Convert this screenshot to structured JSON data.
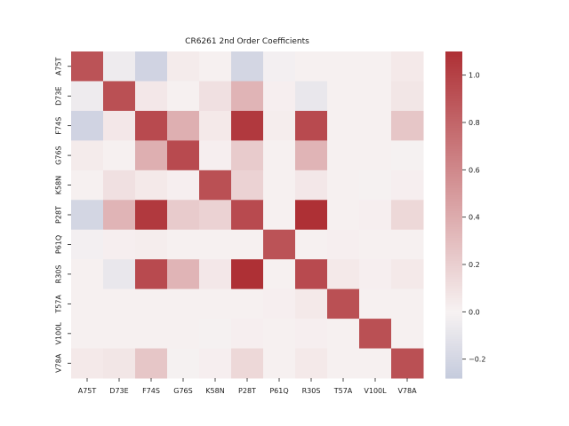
{
  "chart_data": {
    "type": "heatmap",
    "title": "CR6261 2nd Order Coefficients",
    "xlabel": "",
    "ylabel": "",
    "rows": [
      "A75T",
      "D73E",
      "F74S",
      "G76S",
      "K58N",
      "P28T",
      "P61Q",
      "R30S",
      "T57A",
      "V100L",
      "V78A"
    ],
    "columns": [
      "A75T",
      "D73E",
      "F74S",
      "G76S",
      "K58N",
      "P28T",
      "P61Q",
      "R30S",
      "T57A",
      "V100L",
      "V78A"
    ],
    "values": [
      [
        0.9,
        -0.05,
        -0.22,
        0.04,
        0.01,
        -0.2,
        -0.02,
        0.01,
        0.01,
        0.01,
        0.05
      ],
      [
        -0.05,
        0.92,
        0.06,
        0.01,
        0.1,
        0.35,
        0.02,
        -0.08,
        0.01,
        0.01,
        0.07
      ],
      [
        -0.22,
        0.06,
        0.95,
        0.38,
        0.05,
        1.05,
        0.03,
        0.95,
        0.01,
        0.01,
        0.25
      ],
      [
        0.04,
        0.01,
        0.38,
        0.95,
        0.02,
        0.22,
        0.01,
        0.35,
        0.01,
        0.01,
        -0.01
      ],
      [
        0.01,
        0.1,
        0.05,
        0.02,
        0.92,
        0.18,
        0.01,
        0.06,
        0.01,
        -0.01,
        0.02
      ],
      [
        -0.2,
        0.35,
        1.05,
        0.22,
        0.18,
        0.95,
        0.01,
        1.1,
        0.01,
        0.02,
        0.15
      ],
      [
        -0.02,
        0.02,
        0.03,
        0.01,
        0.01,
        0.01,
        0.9,
        0.01,
        0.02,
        0.01,
        0.01
      ],
      [
        0.01,
        -0.08,
        0.95,
        0.35,
        0.06,
        1.1,
        0.01,
        0.95,
        0.05,
        0.02,
        0.05
      ],
      [
        0.01,
        0.01,
        0.01,
        0.01,
        0.01,
        0.01,
        0.02,
        0.05,
        0.92,
        0.01,
        0.01
      ],
      [
        0.01,
        0.01,
        0.01,
        0.01,
        -0.01,
        0.02,
        0.01,
        0.02,
        0.01,
        0.92,
        0.01
      ],
      [
        0.05,
        0.07,
        0.25,
        -0.01,
        0.02,
        0.15,
        0.01,
        0.05,
        0.01,
        0.01,
        0.92
      ]
    ],
    "colorbar": {
      "vmin": -0.28,
      "vmax": 1.1,
      "ticks": [
        -0.2,
        0.0,
        0.2,
        0.4,
        0.6,
        0.8,
        1.0
      ],
      "tick_labels": [
        "−0.2",
        "0.0",
        "0.2",
        "0.4",
        "0.6",
        "0.8",
        "1.0"
      ]
    },
    "colormap": {
      "negative": "#c5cbdd",
      "center": "#f7f2f2",
      "positive": "#ae3035"
    }
  }
}
